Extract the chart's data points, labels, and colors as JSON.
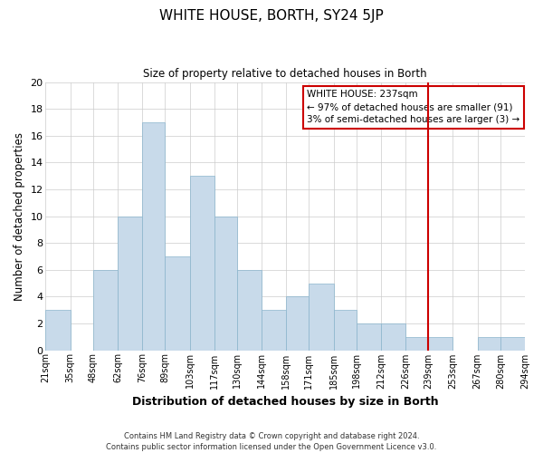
{
  "title": "WHITE HOUSE, BORTH, SY24 5JP",
  "subtitle": "Size of property relative to detached houses in Borth",
  "xlabel": "Distribution of detached houses by size in Borth",
  "ylabel": "Number of detached properties",
  "bar_color": "#c8daea",
  "bar_edge_color": "#8ab4cc",
  "grid_color": "#cccccc",
  "vline_x": 239,
  "vline_color": "#cc0000",
  "bin_edges": [
    21,
    35,
    48,
    62,
    76,
    89,
    103,
    117,
    130,
    144,
    158,
    171,
    185,
    198,
    212,
    226,
    239,
    253,
    267,
    280,
    294
  ],
  "bin_labels": [
    "21sqm",
    "35sqm",
    "48sqm",
    "62sqm",
    "76sqm",
    "89sqm",
    "103sqm",
    "117sqm",
    "130sqm",
    "144sqm",
    "158sqm",
    "171sqm",
    "185sqm",
    "198sqm",
    "212sqm",
    "226sqm",
    "239sqm",
    "253sqm",
    "267sqm",
    "280sqm",
    "294sqm"
  ],
  "bar_heights": [
    3,
    0,
    6,
    10,
    17,
    7,
    13,
    10,
    6,
    3,
    4,
    5,
    3,
    2,
    2,
    1,
    1,
    0,
    1,
    1
  ],
  "ylim": [
    0,
    20
  ],
  "yticks": [
    0,
    2,
    4,
    6,
    8,
    10,
    12,
    14,
    16,
    18,
    20
  ],
  "annotation_title": "WHITE HOUSE: 237sqm",
  "annotation_line1": "← 97% of detached houses are smaller (91)",
  "annotation_line2": "3% of semi-detached houses are larger (3) →",
  "annotation_box_color": "#ffffff",
  "annotation_box_edge": "#cc0000",
  "footer_line1": "Contains HM Land Registry data © Crown copyright and database right 2024.",
  "footer_line2": "Contains public sector information licensed under the Open Government Licence v3.0."
}
